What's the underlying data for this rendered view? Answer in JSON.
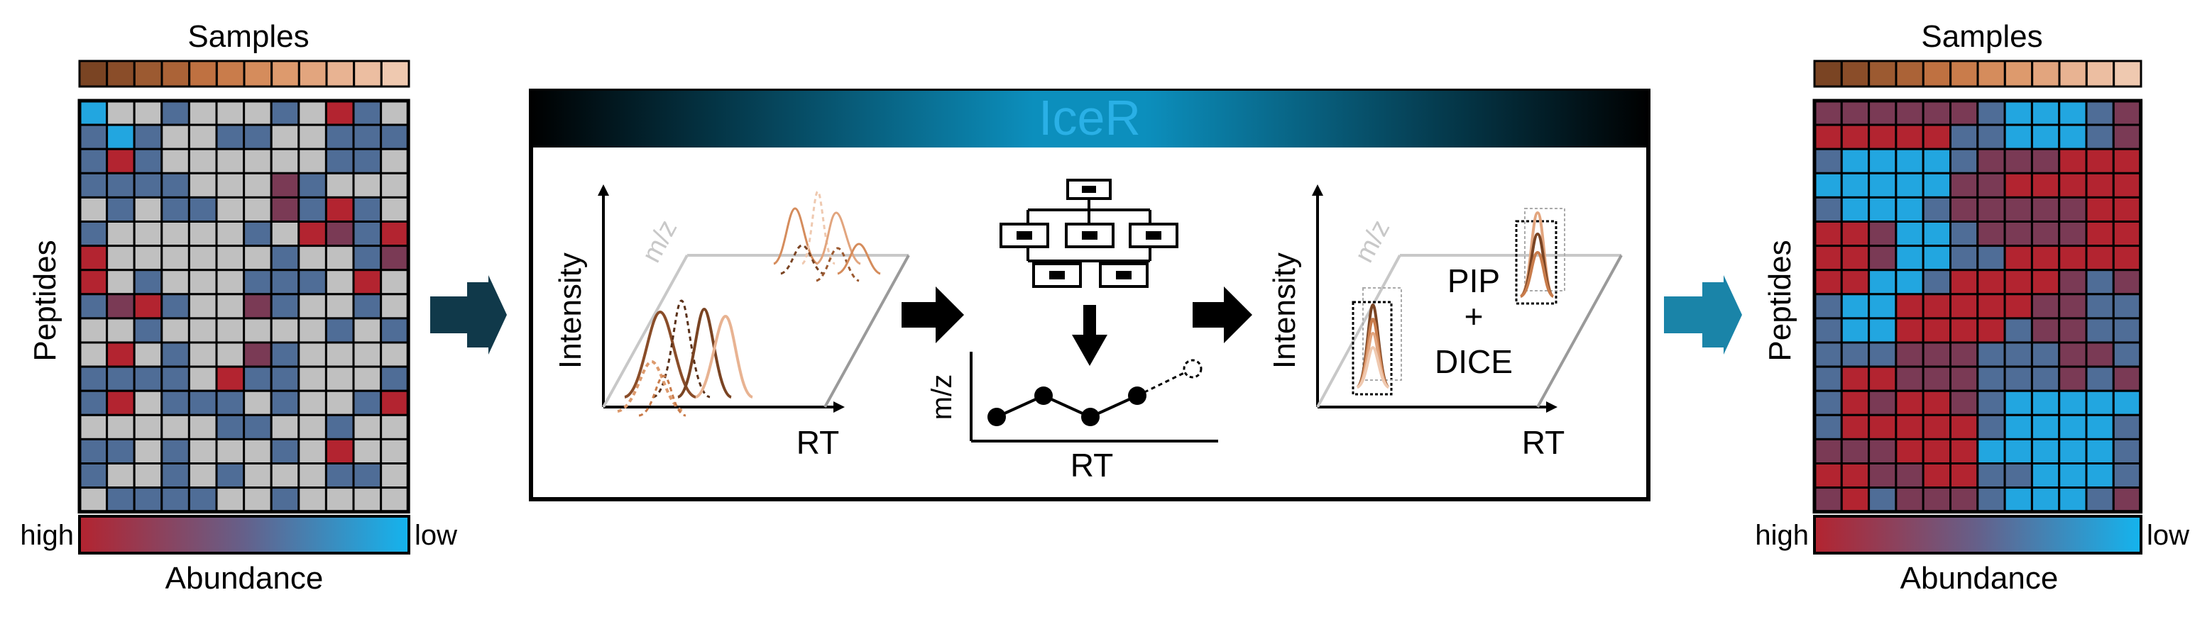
{
  "left_panel": {
    "samples_label": "Samples",
    "peptides_label": "Peptides",
    "legend_high": "high",
    "legend_low": "low",
    "abundance_label": "Abundance",
    "matrix_cells": "6003000301303630033003333130000003303333000230000303300231303000003012311000000300321030003330103213002300300030000003030103002300003333013300033103330300310000033003003303000301003003030003300333300300000330330003",
    "matrix_note": "0=gray(missing),1=red,2=dark red,3=slate blue,6=light blue"
  },
  "right_panel": {
    "samples_label": "Samples",
    "peptides_label": "Peptides",
    "legend_high": "high",
    "legend_low": "low",
    "abundance_label": "Abundance"
  },
  "center_box": {
    "title": "IceR",
    "left_plot": {
      "y_label": "Intensity",
      "z_label": "m/z",
      "x_label": "RT"
    },
    "network_plot": {
      "y_label": "m/z",
      "x_label": "RT"
    },
    "right_plot": {
      "y_label": "Intensity",
      "z_label": "m/z",
      "x_label": "RT",
      "method_line1": "PIP",
      "method_line2": "+",
      "method_line3": "DICE"
    }
  },
  "colors": {
    "sample_bar": [
      "#7a4423",
      "#8a4d29",
      "#9c5a31",
      "#ab6337",
      "#bf7141",
      "#c97c4b",
      "#d58c5c",
      "#dd9a6d",
      "#e2a57e",
      "#e8b392",
      "#ecbea1",
      "#efc9b0"
    ],
    "heat_red": "#b32430",
    "heat_darkred": "#7a3a55",
    "heat_slate": "#4f6d97",
    "heat_lightblue": "#22a6e0",
    "heat_missing": "#c0c0c0",
    "arrow_left": "#10394a",
    "arrow_right": "#1a84a8",
    "title_bar_start": "#000000",
    "title_bar_mid": "#0b90be",
    "title_text": "#1aa0d4"
  }
}
